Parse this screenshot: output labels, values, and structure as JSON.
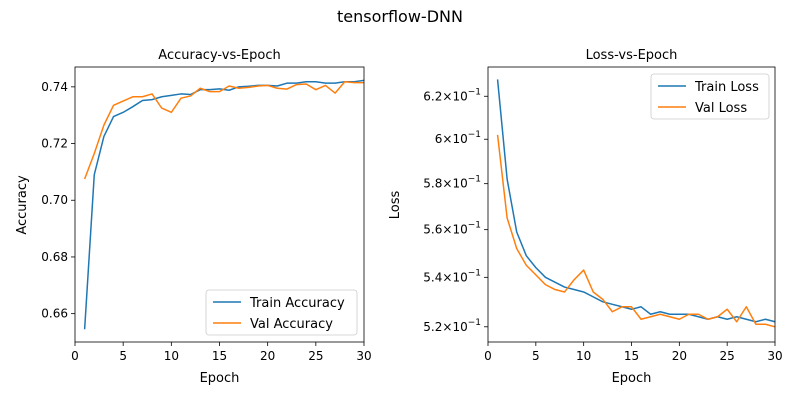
{
  "figure": {
    "title": "tensorflow-DNN"
  },
  "colors": {
    "train": "#1f77b4",
    "val": "#ff7f0e"
  },
  "chart_data": [
    {
      "type": "line",
      "title": "Accuracy-vs-Epoch",
      "xlabel": "Epoch",
      "ylabel": "Accuracy",
      "xlim": [
        0,
        30
      ],
      "ylim": [
        0.65,
        0.747
      ],
      "xticks": [
        0,
        5,
        10,
        15,
        20,
        25,
        30
      ],
      "xtick_labels": [
        "0",
        "5",
        "10",
        "15",
        "20",
        "25",
        "30"
      ],
      "yticks": [
        0.66,
        0.68,
        0.7,
        0.72,
        0.74
      ],
      "ytick_labels": [
        "0.66",
        "0.68",
        "0.70",
        "0.72",
        "0.74"
      ],
      "yscale": "linear",
      "grid": false,
      "legend_position": "lower-right",
      "x": [
        1,
        2,
        3,
        4,
        5,
        6,
        7,
        8,
        9,
        10,
        11,
        12,
        13,
        14,
        15,
        16,
        17,
        18,
        19,
        20,
        21,
        22,
        23,
        24,
        25,
        26,
        27,
        28,
        29,
        30
      ],
      "series": [
        {
          "name": "Train Accuracy",
          "color_key": "train",
          "values": [
            0.6545,
            0.709,
            0.7225,
            0.7295,
            0.731,
            0.733,
            0.7352,
            0.7355,
            0.7365,
            0.737,
            0.7375,
            0.7373,
            0.739,
            0.739,
            0.7393,
            0.7388,
            0.74,
            0.7402,
            0.7405,
            0.7405,
            0.7403,
            0.7413,
            0.7413,
            0.7418,
            0.7418,
            0.7413,
            0.7413,
            0.7418,
            0.7418,
            0.7423
          ]
        },
        {
          "name": "Val Accuracy",
          "color_key": "val",
          "values": [
            0.7075,
            0.7165,
            0.7265,
            0.7335,
            0.735,
            0.7365,
            0.7365,
            0.7375,
            0.7325,
            0.731,
            0.736,
            0.7368,
            0.7395,
            0.7383,
            0.7383,
            0.7403,
            0.7395,
            0.7398,
            0.7403,
            0.7405,
            0.7395,
            0.7392,
            0.7408,
            0.741,
            0.739,
            0.7405,
            0.7378,
            0.7418,
            0.7415,
            0.7415
          ]
        }
      ]
    },
    {
      "type": "line",
      "title": "Loss-vs-Epoch",
      "xlabel": "Epoch",
      "ylabel": "Loss",
      "xlim": [
        0,
        30
      ],
      "ylim": [
        0.514,
        0.634
      ],
      "xticks": [
        0,
        5,
        10,
        15,
        20,
        25,
        30
      ],
      "xtick_labels": [
        "0",
        "5",
        "10",
        "15",
        "20",
        "25",
        "30"
      ],
      "yticks": [
        0.52,
        0.54,
        0.56,
        0.58,
        0.6,
        0.62
      ],
      "ytick_mantissas": [
        "5.2",
        "5.4",
        "5.6",
        "5.8",
        "6",
        "6.2"
      ],
      "ytick_base": "10",
      "ytick_exponent": "−1",
      "yscale": "log",
      "grid": false,
      "legend_position": "upper-right",
      "x": [
        1,
        2,
        3,
        4,
        5,
        6,
        7,
        8,
        9,
        10,
        11,
        12,
        13,
        14,
        15,
        16,
        17,
        18,
        19,
        20,
        21,
        22,
        23,
        24,
        25,
        26,
        27,
        28,
        29,
        30
      ],
      "series": [
        {
          "name": "Train Loss",
          "color_key": "train",
          "values": [
            0.628,
            0.582,
            0.559,
            0.549,
            0.544,
            0.54,
            0.538,
            0.536,
            0.535,
            0.534,
            0.532,
            0.53,
            0.529,
            0.528,
            0.527,
            0.528,
            0.525,
            0.526,
            0.525,
            0.525,
            0.525,
            0.524,
            0.523,
            0.524,
            0.523,
            0.524,
            0.523,
            0.522,
            0.523,
            0.522
          ]
        },
        {
          "name": "Val Loss",
          "color_key": "val",
          "values": [
            0.602,
            0.565,
            0.552,
            0.545,
            0.541,
            0.537,
            0.535,
            0.534,
            0.539,
            0.543,
            0.534,
            0.531,
            0.526,
            0.528,
            0.528,
            0.523,
            0.524,
            0.525,
            0.524,
            0.523,
            0.525,
            0.525,
            0.523,
            0.524,
            0.527,
            0.522,
            0.528,
            0.521,
            0.521,
            0.52
          ]
        }
      ]
    }
  ]
}
